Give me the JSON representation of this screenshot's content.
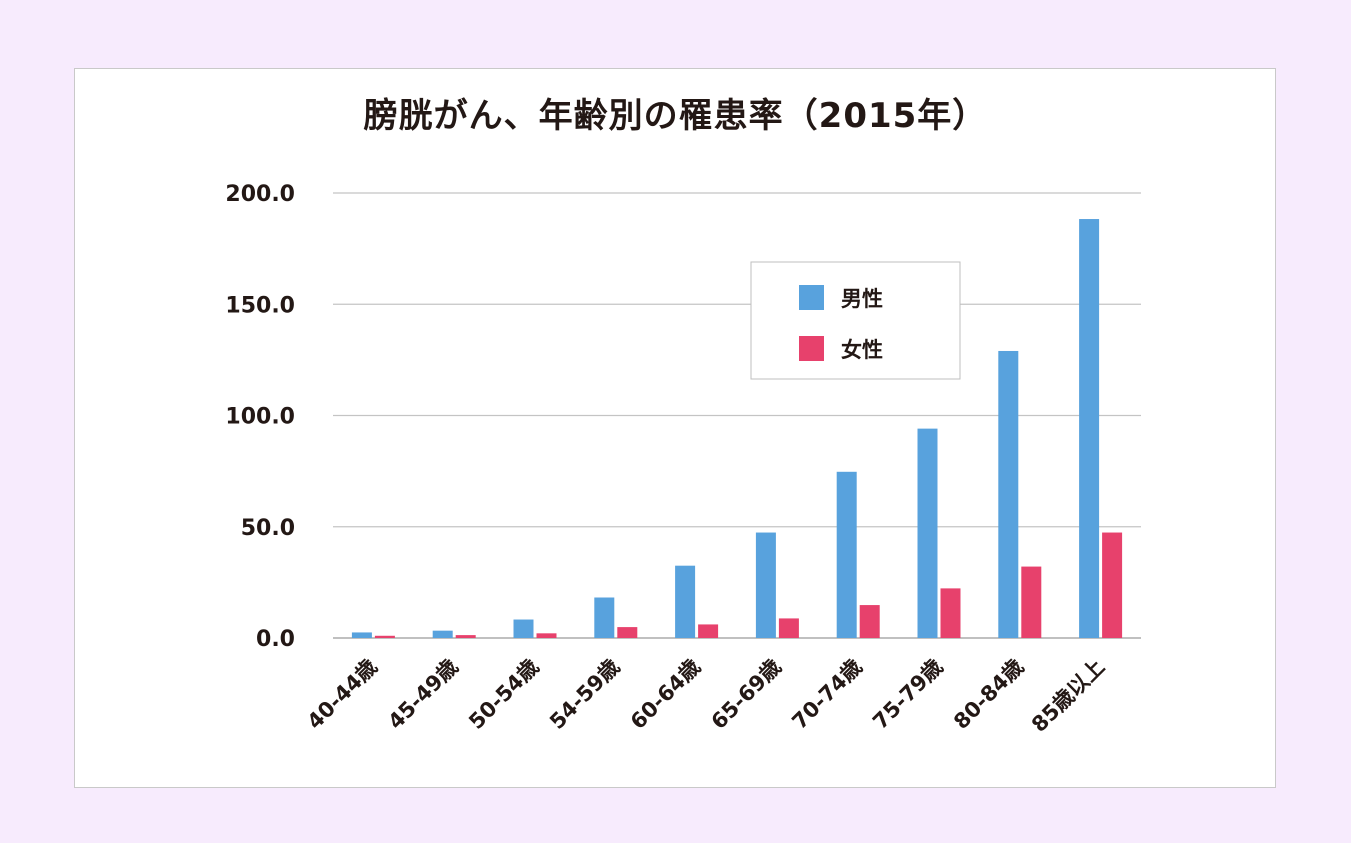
{
  "chart_data": {
    "type": "bar",
    "title": "膀胱がん、年齢別の罹患率（2015年）",
    "categories": [
      "40-44歳",
      "45-49歳",
      "50-54歳",
      "54-59歳",
      "60-64歳",
      "65-69歳",
      "70-74歳",
      "75-79歳",
      "80-84歳",
      "85歳以上"
    ],
    "series": [
      {
        "name": "男性",
        "color": "#58a2dd",
        "values": [
          2.5,
          3.3,
          8.3,
          18.2,
          32.5,
          47.4,
          74.7,
          94.1,
          129.0,
          188.3
        ]
      },
      {
        "name": "女性",
        "color": "#e7416c",
        "values": [
          1.0,
          1.3,
          2.1,
          4.9,
          6.1,
          8.8,
          14.8,
          22.3,
          32.1,
          47.4
        ]
      }
    ],
    "ylim": [
      0,
      200
    ],
    "yticks": [
      "0.0",
      "50.0",
      "100.0",
      "150.0",
      "200.0"
    ],
    "grid": true,
    "legend_position": "upper-right"
  }
}
